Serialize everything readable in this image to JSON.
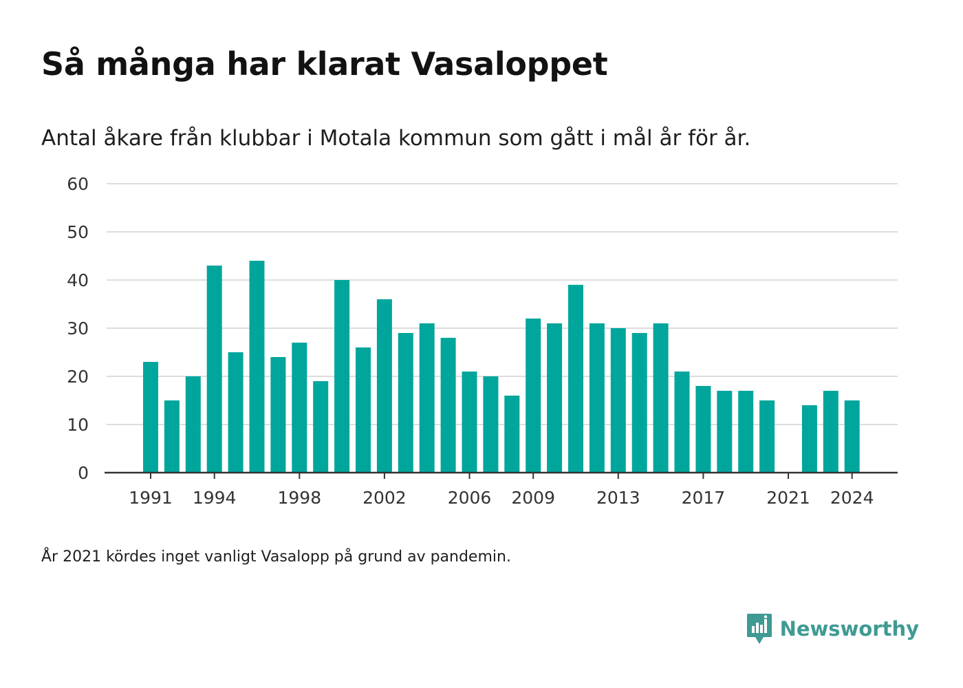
{
  "title": "Så många har klarat Vasaloppet",
  "subtitle": "Antal åkare från klubbar i Motala kommun som gått i mål år för år.",
  "footnote": "År 2021 kördes inget vanligt Vasalopp på grund av pandemin.",
  "brand": {
    "name": "Newsworthy",
    "icon": "newsworthy-logo-icon",
    "color": "#3f9a93"
  },
  "chart_data": {
    "type": "bar",
    "categories": [
      "1991",
      "1992",
      "1993",
      "1994",
      "1995",
      "1996",
      "1997",
      "1998",
      "1999",
      "2000",
      "2001",
      "2002",
      "2003",
      "2004",
      "2005",
      "2006",
      "2007",
      "2008",
      "2009",
      "2010",
      "2011",
      "2012",
      "2013",
      "2014",
      "2015",
      "2016",
      "2017",
      "2018",
      "2019",
      "2020",
      "2021",
      "2022",
      "2023",
      "2024"
    ],
    "values": [
      23,
      15,
      20,
      43,
      25,
      44,
      24,
      27,
      19,
      40,
      26,
      36,
      29,
      31,
      28,
      21,
      20,
      16,
      32,
      31,
      39,
      31,
      30,
      29,
      31,
      21,
      18,
      17,
      17,
      15,
      null,
      14,
      17,
      15
    ],
    "xtick_labels": [
      "1991",
      "1994",
      "1998",
      "2002",
      "2006",
      "2009",
      "2013",
      "2017",
      "2021",
      "2024"
    ],
    "yticks": [
      0,
      10,
      20,
      30,
      40,
      50,
      60
    ],
    "ylim": [
      0,
      60
    ],
    "xlabel": "",
    "ylabel": "",
    "grid": true,
    "bar_color": "#00a69c",
    "grid_color": "#dddddd",
    "axis_color": "#333333"
  }
}
